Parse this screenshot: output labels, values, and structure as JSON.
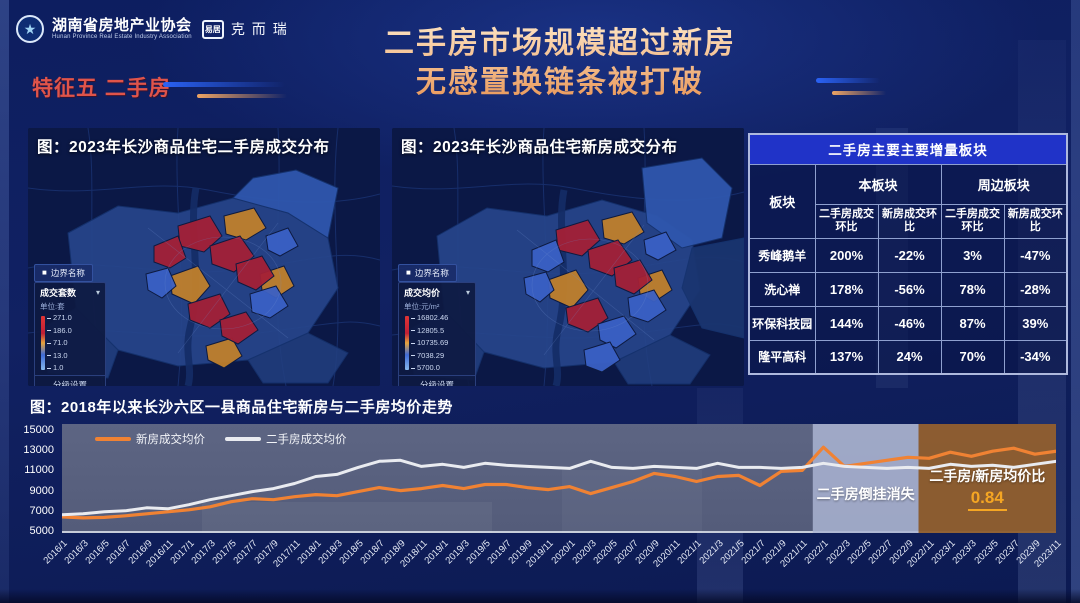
{
  "icons": {
    "star": "★",
    "chevron_down": "▾",
    "checkbox": "■"
  },
  "header": {
    "org_name": "湖南省房地产业协会",
    "org_name_en": "Hunan Province Real Estate Industry Association",
    "brand_box": "易居",
    "brand_name": "克而瑞",
    "title_line1": "二手房市场规模超过新房",
    "title_line2": "无感置换链条被打破",
    "feature_tag": "特征五 二手房"
  },
  "maps": {
    "left": {
      "title": "图：2023年长沙商品住宅二手房成交分布",
      "legend": {
        "boundary_label": "边界名称",
        "metric_label": "成交套数",
        "unit_label": "单位:套",
        "scale_values": [
          "271.0",
          "186.0",
          "71.0",
          "13.0",
          "1.0"
        ],
        "footer_label": "分级设置"
      }
    },
    "right": {
      "title": "图：2023年长沙商品住宅新房成交分布",
      "legend": {
        "boundary_label": "边界名称",
        "metric_label": "成交均价",
        "unit_label": "单位:元/m²",
        "scale_values": [
          "16802.46",
          "12805.5",
          "10735.69",
          "7038.29",
          "5700.0"
        ],
        "footer_label": "分级设置"
      }
    }
  },
  "table": {
    "title": "二手房主要主要增量板块",
    "board_header": "板块",
    "group_headers": [
      "本板块",
      "周边板块"
    ],
    "sub_headers": [
      "二手房成交环比",
      "新房成交环比",
      "二手房成交环比",
      "新房成交环比"
    ],
    "rows": [
      [
        "秀峰鹅羊",
        "200%",
        "-22%",
        "3%",
        "-47%"
      ],
      [
        "洗心禅",
        "178%",
        "-56%",
        "78%",
        "-28%"
      ],
      [
        "环保科技园",
        "144%",
        "-46%",
        "87%",
        "39%"
      ],
      [
        "隆平高科",
        "137%",
        "24%",
        "70%",
        "-34%"
      ]
    ]
  },
  "chart_data": {
    "type": "line",
    "title": "图：2018年以来长沙六区一县商品住宅新房与二手房均价走势",
    "x": [
      "2016/1",
      "2016/3",
      "2016/5",
      "2016/7",
      "2016/9",
      "2016/11",
      "2017/1",
      "2017/3",
      "2017/5",
      "2017/7",
      "2017/9",
      "2017/11",
      "2018/1",
      "2018/3",
      "2018/5",
      "2018/7",
      "2018/9",
      "2018/11",
      "2019/1",
      "2019/3",
      "2019/5",
      "2019/7",
      "2019/9",
      "2019/11",
      "2020/1",
      "2020/3",
      "2020/5",
      "2020/7",
      "2020/9",
      "2020/11",
      "2021/1",
      "2021/3",
      "2021/5",
      "2021/7",
      "2021/9",
      "2021/11",
      "2022/1",
      "2022/3",
      "2022/5",
      "2022/7",
      "2022/9",
      "2022/11",
      "2023/1",
      "2023/3",
      "2023/5",
      "2023/7",
      "2023/9",
      "2023/11"
    ],
    "x_step_months": 2,
    "total_months_span": 94,
    "series": [
      {
        "name": "新房成交均价",
        "color": "#f08233",
        "values": [
          6400,
          6300,
          6350,
          6500,
          6700,
          6900,
          7100,
          7400,
          7900,
          8200,
          8100,
          8400,
          8600,
          8500,
          8900,
          9300,
          9000,
          9200,
          9500,
          9200,
          9600,
          9600,
          9300,
          9100,
          9400,
          8700,
          9300,
          9900,
          10700,
          10400,
          9900,
          10400,
          10500,
          9500,
          10900,
          11000,
          13300,
          11400,
          11700,
          12000,
          12300,
          12200,
          12800,
          12400,
          12900,
          13200,
          12600,
          12900
        ]
      },
      {
        "name": "二手房成交均价",
        "color": "#e9ebf0",
        "values": [
          6600,
          6700,
          6900,
          7000,
          7300,
          7200,
          7600,
          8100,
          8500,
          8900,
          9200,
          9700,
          10400,
          10600,
          11300,
          11900,
          12000,
          11400,
          11600,
          11300,
          11700,
          11500,
          11400,
          11300,
          11200,
          11900,
          11300,
          11200,
          11400,
          11300,
          11200,
          11700,
          11300,
          11300,
          11200,
          11300,
          11700,
          11400,
          11300,
          11200,
          11300,
          11200,
          11600,
          11400,
          11500,
          11300,
          11600,
          11900
        ]
      }
    ],
    "ylim": [
      5000,
      15000
    ],
    "yticks": [
      15000,
      13000,
      11000,
      9000,
      7000,
      5000
    ],
    "grid": false,
    "legend_position": "top-left",
    "annotations": [
      {
        "label": "二手房倒挂消失",
        "from_month": 71,
        "to_month": 81,
        "color": "#aab4d2"
      },
      {
        "label": "二手房/新房均价比",
        "value": "0.84",
        "from_month": 81,
        "to_month": 94,
        "color": "#8e5c2c",
        "value_color": "#f5a623"
      }
    ]
  }
}
